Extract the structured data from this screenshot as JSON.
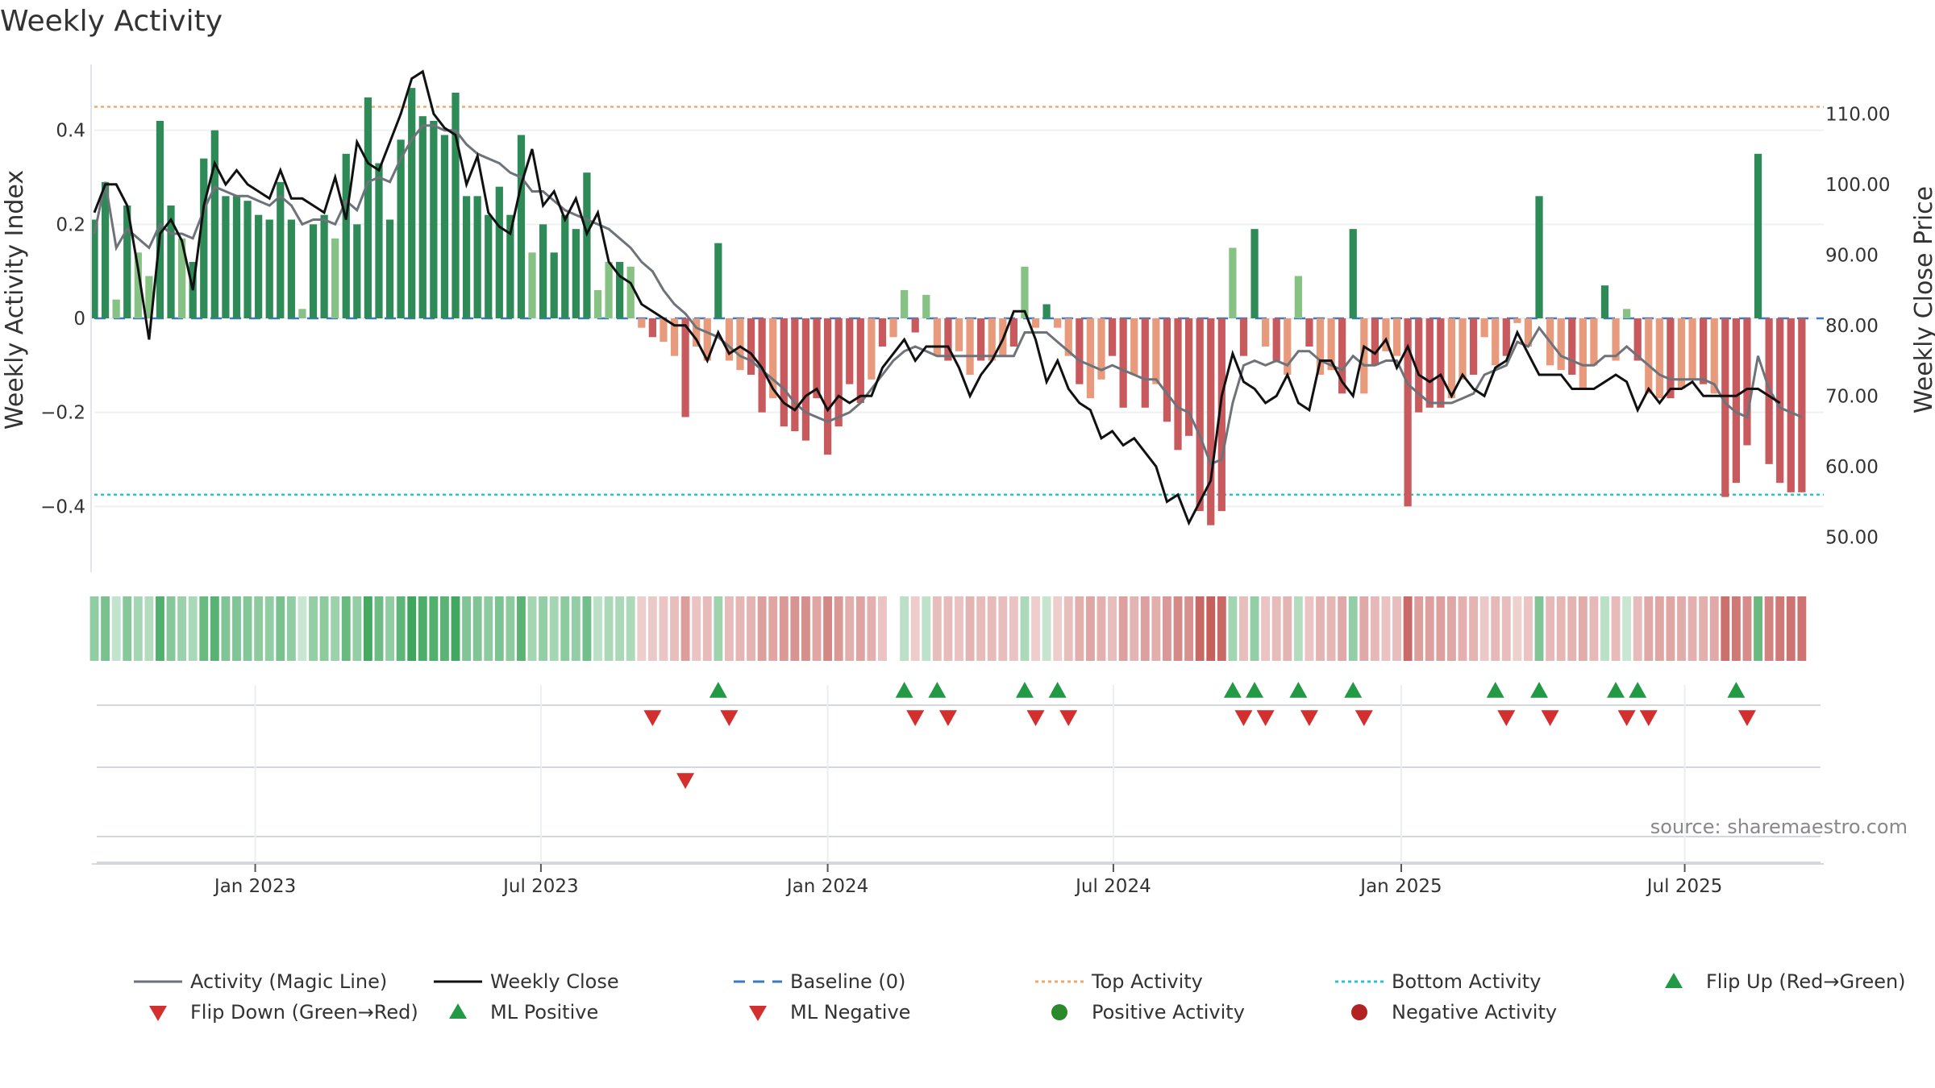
{
  "chart_data": {
    "type": "bar",
    "title": "Weekly Activity",
    "ylabel_left": "Weekly Activity Index",
    "ylabel_right": "Weekly Close Price",
    "ylim_left": [
      -0.54,
      0.54
    ],
    "ylim_right": [
      45,
      117
    ],
    "left_ticks": [
      "0.4",
      "0.2",
      "0",
      "−0.2",
      "−0.4"
    ],
    "left_tick_values": [
      0.4,
      0.2,
      0,
      -0.2,
      -0.4
    ],
    "right_ticks": [
      "110.00",
      "100.00",
      "90.00",
      "80.00",
      "70.00",
      "60.00",
      "50.00"
    ],
    "right_tick_values": [
      110,
      100,
      90,
      80,
      70,
      60,
      50
    ],
    "x_ticks": [
      "Jan 2023",
      "Jul 2023",
      "Jan 2024",
      "Jul 2024",
      "Jan 2025",
      "Jul 2025"
    ],
    "x_tick_weeks": [
      14.7,
      40.8,
      67,
      93.1,
      119.4,
      145.3
    ],
    "week_count": 159,
    "top_activity": 0.45,
    "bottom_activity": -0.375,
    "activity": [
      0.21,
      0.29,
      0.04,
      0.24,
      0.14,
      0.09,
      0.42,
      0.24,
      0.17,
      0.12,
      0.34,
      0.4,
      0.26,
      0.26,
      0.25,
      0.22,
      0.21,
      0.29,
      0.21,
      0.02,
      0.2,
      0.22,
      0.17,
      0.35,
      0.2,
      0.47,
      0.33,
      0.21,
      0.38,
      0.49,
      0.43,
      0.42,
      0.39,
      0.48,
      0.26,
      0.26,
      0.22,
      0.28,
      0.22,
      0.39,
      0.14,
      0.2,
      0.14,
      0.22,
      0.19,
      0.31,
      0.06,
      0.12,
      0.12,
      0.11,
      -0.02,
      -0.04,
      -0.05,
      -0.08,
      -0.21,
      -0.06,
      -0.09,
      0.16,
      -0.09,
      -0.11,
      -0.12,
      -0.2,
      -0.17,
      -0.23,
      -0.24,
      -0.26,
      -0.17,
      -0.29,
      -0.23,
      -0.14,
      -0.18,
      -0.13,
      -0.06,
      -0.04,
      0.06,
      -0.03,
      0.05,
      -0.08,
      -0.09,
      -0.07,
      -0.12,
      -0.09,
      -0.09,
      -0.08,
      -0.06,
      0.11,
      -0.02,
      0.03,
      -0.02,
      -0.08,
      -0.14,
      -0.17,
      -0.13,
      -0.08,
      -0.19,
      -0.12,
      -0.19,
      -0.14,
      -0.22,
      -0.28,
      -0.25,
      -0.41,
      -0.44,
      -0.41,
      0.15,
      -0.08,
      0.19,
      -0.06,
      -0.09,
      -0.12,
      0.09,
      -0.06,
      -0.12,
      -0.11,
      -0.16,
      0.19,
      -0.16,
      -0.1,
      -0.07,
      -0.08,
      -0.4,
      -0.2,
      -0.19,
      -0.19,
      -0.17,
      -0.13,
      -0.12,
      -0.04,
      -0.1,
      -0.08,
      -0.01,
      -0.06,
      0.26,
      -0.1,
      -0.11,
      -0.12,
      -0.15,
      -0.1,
      0.07,
      -0.09,
      0.02,
      -0.09,
      -0.16,
      -0.17,
      -0.17,
      -0.15,
      -0.13,
      -0.14,
      -0.16,
      -0.38,
      -0.35,
      -0.27,
      0.35,
      -0.31,
      -0.35,
      -0.37,
      -0.37
    ],
    "magic_line": [
      0.18,
      0.29,
      0.15,
      0.19,
      0.17,
      0.15,
      0.2,
      0.18,
      0.18,
      0.17,
      0.23,
      0.28,
      0.27,
      0.26,
      0.26,
      0.25,
      0.24,
      0.26,
      0.24,
      0.2,
      0.21,
      0.21,
      0.2,
      0.25,
      0.23,
      0.29,
      0.3,
      0.29,
      0.34,
      0.38,
      0.41,
      0.41,
      0.4,
      0.4,
      0.37,
      0.35,
      0.34,
      0.33,
      0.31,
      0.3,
      0.27,
      0.27,
      0.25,
      0.23,
      0.22,
      0.21,
      0.2,
      0.19,
      0.17,
      0.15,
      0.12,
      0.1,
      0.06,
      0.03,
      0.01,
      -0.02,
      -0.03,
      -0.04,
      -0.06,
      -0.08,
      -0.09,
      -0.11,
      -0.13,
      -0.15,
      -0.18,
      -0.2,
      -0.21,
      -0.22,
      -0.21,
      -0.2,
      -0.18,
      -0.15,
      -0.12,
      -0.09,
      -0.07,
      -0.06,
      -0.07,
      -0.08,
      -0.08,
      -0.08,
      -0.08,
      -0.08,
      -0.08,
      -0.08,
      -0.08,
      -0.03,
      -0.03,
      -0.03,
      -0.05,
      -0.07,
      -0.09,
      -0.1,
      -0.11,
      -0.1,
      -0.11,
      -0.12,
      -0.13,
      -0.13,
      -0.16,
      -0.19,
      -0.2,
      -0.25,
      -0.31,
      -0.3,
      -0.18,
      -0.1,
      -0.09,
      -0.1,
      -0.09,
      -0.1,
      -0.07,
      -0.07,
      -0.09,
      -0.1,
      -0.11,
      -0.08,
      -0.1,
      -0.1,
      -0.09,
      -0.09,
      -0.14,
      -0.16,
      -0.18,
      -0.18,
      -0.18,
      -0.17,
      -0.16,
      -0.12,
      -0.11,
      -0.1,
      -0.05,
      -0.06,
      -0.02,
      -0.05,
      -0.08,
      -0.09,
      -0.1,
      -0.1,
      -0.08,
      -0.08,
      -0.06,
      -0.08,
      -0.1,
      -0.12,
      -0.13,
      -0.13,
      -0.13,
      -0.13,
      -0.14,
      -0.18,
      -0.2,
      -0.21,
      -0.08,
      -0.15,
      -0.19,
      -0.2,
      -0.21
    ],
    "weekly_close": [
      96,
      100,
      100,
      97,
      88,
      78,
      93,
      95,
      92,
      85,
      97,
      103,
      100,
      102,
      100,
      99,
      98,
      102,
      98,
      98,
      97,
      96,
      101,
      95,
      106,
      103,
      102,
      106,
      110,
      115,
      116,
      110,
      108,
      107,
      100,
      104,
      96,
      94,
      93,
      100,
      105,
      97,
      99,
      95,
      98,
      93,
      96,
      89,
      87,
      86,
      83,
      82,
      81,
      80,
      80,
      78,
      75,
      79,
      76,
      77,
      76,
      74,
      71,
      69,
      68,
      70,
      71,
      68,
      70,
      69,
      70,
      70,
      74,
      76,
      78,
      75,
      77,
      77,
      77,
      74,
      70,
      73,
      75,
      78,
      82,
      82,
      78,
      72,
      75,
      71,
      69,
      68,
      64,
      65,
      63,
      64,
      62,
      60,
      55,
      56,
      52,
      55,
      58,
      70,
      76,
      72,
      71,
      69,
      70,
      73,
      69,
      68,
      75,
      75,
      72,
      70,
      77,
      76,
      78,
      74,
      77,
      73,
      72,
      73,
      70,
      73,
      71,
      70,
      74,
      75,
      79,
      76,
      73,
      73,
      73,
      71,
      71,
      71,
      72,
      73,
      72,
      68,
      71,
      69,
      71,
      71,
      72,
      70,
      70,
      70,
      70,
      71,
      71,
      70,
      69
    ],
    "flip_up_weeks": [
      57,
      74,
      77,
      85,
      88,
      104,
      106,
      110,
      115,
      128,
      132,
      139,
      141,
      150
    ],
    "flip_down_weeks": [
      51,
      58,
      75,
      78,
      86,
      89,
      105,
      107,
      111,
      116,
      129,
      133,
      140,
      142,
      151
    ],
    "ml_negative_weeks": [
      54
    ],
    "heatmap_missing_week": 73
  },
  "source_label": "source: sharemaestro.com",
  "legend": [
    {
      "label": "Activity (Magic Line)",
      "marker": "line-gray"
    },
    {
      "label": "Weekly Close",
      "marker": "line-black"
    },
    {
      "label": "Baseline (0)",
      "marker": "dash-blue"
    },
    {
      "label": "Top Activity",
      "marker": "dot-orange"
    },
    {
      "label": "Bottom Activity",
      "marker": "dot-cyan"
    },
    {
      "label": "Flip Up (Red→Green)",
      "marker": "tri-up-green"
    },
    {
      "label": "Flip Down (Green→Red)",
      "marker": "tri-down-red"
    },
    {
      "label": "ML Positive",
      "marker": "tri-up-green"
    },
    {
      "label": "ML Negative",
      "marker": "tri-down-red"
    },
    {
      "label": "Positive Activity",
      "marker": "circle-green"
    },
    {
      "label": "Negative Activity",
      "marker": "circle-red"
    }
  ],
  "colors": {
    "bar_pos_strong": "#2e8b57",
    "bar_pos_light": "#86c283",
    "bar_neg_strong": "#c85a5e",
    "bar_neg_light": "#e89a7c",
    "magic_line": "#6e737a",
    "close_line": "#111111",
    "baseline": "#3a7bbf",
    "top_line": "#f0a868",
    "bottom_line": "#29c4cc",
    "marker_up": "#229944",
    "marker_down": "#d32f2f",
    "neg_circle": "#b22222",
    "pos_circle": "#2a8a2a"
  }
}
